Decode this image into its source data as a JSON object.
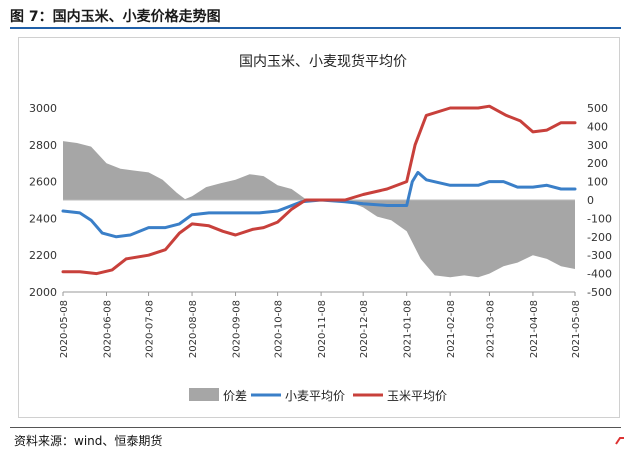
{
  "figure_label": "图 7：国内玉米、小麦价格走势图",
  "source": "资料来源：wind、恒泰期货",
  "colors": {
    "diff": "#a6a6a6",
    "wheat": "#3a7fc8",
    "corn": "#c8403b",
    "rule": "#1f5fa8"
  },
  "chart_data": {
    "type": "line",
    "title": "国内玉米、小麦现货平均价",
    "x_ticks": [
      "2020-05-08",
      "2020-06-08",
      "2020-07-08",
      "2020-08-08",
      "2020-09-08",
      "2020-10-08",
      "2020-11-08",
      "2020-12-08",
      "2021-01-08",
      "2021-02-08",
      "2021-03-08",
      "2021-04-08",
      "2021-05-08"
    ],
    "x_range": [
      "2020-05-08",
      "2021-05-08"
    ],
    "y_left": {
      "range": [
        2000,
        3000
      ],
      "ticks": [
        "2000",
        "2200",
        "2400",
        "2600",
        "2800",
        "3000"
      ]
    },
    "y_right": {
      "range": [
        -500,
        500
      ],
      "ticks": [
        "-500",
        "-400",
        "-300",
        "-200",
        "-100",
        "0",
        "100",
        "200",
        "300",
        "400",
        "500"
      ]
    },
    "grid": false,
    "legend_position": "bottom",
    "series": [
      {
        "name": "价差",
        "type": "area",
        "axis": "right",
        "points": [
          [
            "2020-05-08",
            320
          ],
          [
            "2020-05-18",
            310
          ],
          [
            "2020-05-28",
            290
          ],
          [
            "2020-06-08",
            200
          ],
          [
            "2020-06-18",
            170
          ],
          [
            "2020-06-28",
            160
          ],
          [
            "2020-07-08",
            150
          ],
          [
            "2020-07-18",
            110
          ],
          [
            "2020-07-28",
            40
          ],
          [
            "2020-08-03",
            5
          ],
          [
            "2020-08-08",
            20
          ],
          [
            "2020-08-18",
            70
          ],
          [
            "2020-08-28",
            90
          ],
          [
            "2020-09-08",
            110
          ],
          [
            "2020-09-18",
            140
          ],
          [
            "2020-09-28",
            130
          ],
          [
            "2020-10-08",
            80
          ],
          [
            "2020-10-18",
            60
          ],
          [
            "2020-10-28",
            5
          ],
          [
            "2020-11-08",
            -5
          ],
          [
            "2020-11-28",
            -10
          ],
          [
            "2020-12-08",
            -40
          ],
          [
            "2020-12-18",
            -90
          ],
          [
            "2020-12-28",
            -110
          ],
          [
            "2021-01-08",
            -170
          ],
          [
            "2021-01-18",
            -320
          ],
          [
            "2021-01-28",
            -410
          ],
          [
            "2021-02-08",
            -420
          ],
          [
            "2021-02-18",
            -410
          ],
          [
            "2021-02-28",
            -420
          ],
          [
            "2021-03-08",
            -400
          ],
          [
            "2021-03-18",
            -360
          ],
          [
            "2021-03-28",
            -340
          ],
          [
            "2021-04-08",
            -300
          ],
          [
            "2021-04-18",
            -320
          ],
          [
            "2021-04-28",
            -360
          ],
          [
            "2021-05-08",
            -375
          ]
        ]
      },
      {
        "name": "小麦平均价",
        "type": "line",
        "axis": "left",
        "points": [
          [
            "2020-05-08",
            2440
          ],
          [
            "2020-05-20",
            2430
          ],
          [
            "2020-05-28",
            2390
          ],
          [
            "2020-06-05",
            2320
          ],
          [
            "2020-06-15",
            2300
          ],
          [
            "2020-06-25",
            2310
          ],
          [
            "2020-07-08",
            2350
          ],
          [
            "2020-07-20",
            2350
          ],
          [
            "2020-07-30",
            2370
          ],
          [
            "2020-08-08",
            2420
          ],
          [
            "2020-08-20",
            2430
          ],
          [
            "2020-09-08",
            2430
          ],
          [
            "2020-09-25",
            2430
          ],
          [
            "2020-10-08",
            2440
          ],
          [
            "2020-10-25",
            2490
          ],
          [
            "2020-11-08",
            2500
          ],
          [
            "2020-11-25",
            2490
          ],
          [
            "2020-12-08",
            2480
          ],
          [
            "2020-12-25",
            2470
          ],
          [
            "2021-01-08",
            2470
          ],
          [
            "2021-01-12",
            2600
          ],
          [
            "2021-01-16",
            2650
          ],
          [
            "2021-01-22",
            2610
          ],
          [
            "2021-02-08",
            2580
          ],
          [
            "2021-02-28",
            2580
          ],
          [
            "2021-03-08",
            2600
          ],
          [
            "2021-03-18",
            2600
          ],
          [
            "2021-03-28",
            2570
          ],
          [
            "2021-04-08",
            2570
          ],
          [
            "2021-04-18",
            2580
          ],
          [
            "2021-04-28",
            2560
          ],
          [
            "2021-05-08",
            2560
          ]
        ]
      },
      {
        "name": "玉米平均价",
        "type": "line",
        "axis": "left",
        "points": [
          [
            "2020-05-08",
            2110
          ],
          [
            "2020-05-20",
            2110
          ],
          [
            "2020-06-01",
            2100
          ],
          [
            "2020-06-12",
            2120
          ],
          [
            "2020-06-22",
            2180
          ],
          [
            "2020-07-08",
            2200
          ],
          [
            "2020-07-20",
            2230
          ],
          [
            "2020-07-30",
            2320
          ],
          [
            "2020-08-08",
            2370
          ],
          [
            "2020-08-20",
            2360
          ],
          [
            "2020-08-30",
            2330
          ],
          [
            "2020-09-08",
            2310
          ],
          [
            "2020-09-20",
            2340
          ],
          [
            "2020-09-28",
            2350
          ],
          [
            "2020-10-08",
            2380
          ],
          [
            "2020-10-18",
            2450
          ],
          [
            "2020-10-28",
            2500
          ],
          [
            "2020-11-08",
            2500
          ],
          [
            "2020-11-25",
            2500
          ],
          [
            "2020-12-08",
            2530
          ],
          [
            "2020-12-25",
            2560
          ],
          [
            "2021-01-08",
            2600
          ],
          [
            "2021-01-14",
            2800
          ],
          [
            "2021-01-22",
            2960
          ],
          [
            "2021-02-08",
            3000
          ],
          [
            "2021-02-28",
            3000
          ],
          [
            "2021-03-08",
            3010
          ],
          [
            "2021-03-20",
            2960
          ],
          [
            "2021-03-30",
            2930
          ],
          [
            "2021-04-08",
            2870
          ],
          [
            "2021-04-18",
            2880
          ],
          [
            "2021-04-28",
            2920
          ],
          [
            "2021-05-08",
            2920
          ]
        ]
      }
    ]
  }
}
